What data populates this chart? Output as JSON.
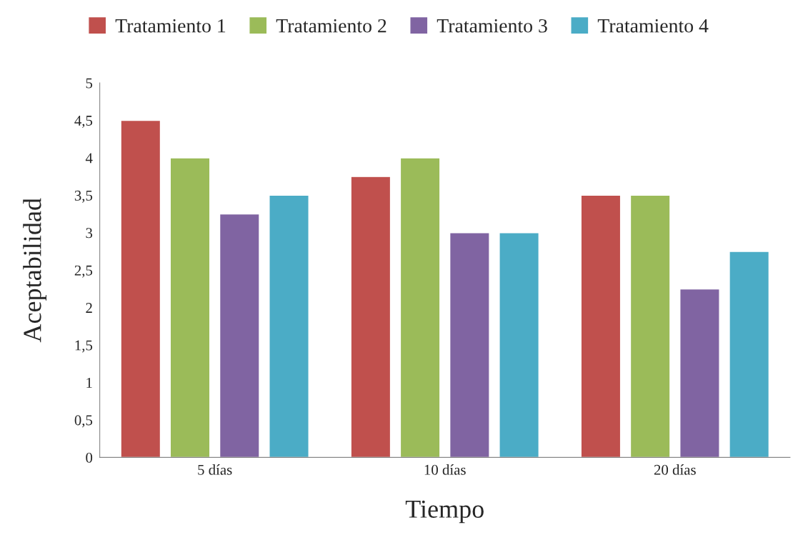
{
  "chart_data": {
    "type": "bar",
    "xlabel": "Tiempo",
    "ylabel": "Aceptabilidad",
    "categories": [
      "5 días",
      "10 días",
      "20 días"
    ],
    "series": [
      {
        "name": "Tratamiento 1",
        "color": "#c0504d",
        "values": [
          4.5,
          3.75,
          3.5
        ]
      },
      {
        "name": "Tratamiento 2",
        "color": "#9bbb59",
        "values": [
          4,
          4,
          3.5
        ]
      },
      {
        "name": "Tratamiento 3",
        "color": "#8064a2",
        "values": [
          3.25,
          3,
          2.25
        ]
      },
      {
        "name": "Tratamiento 4",
        "color": "#4bacc6",
        "values": [
          3.5,
          3,
          2.75
        ]
      }
    ],
    "ylim": [
      0,
      5
    ],
    "yticks": [
      0,
      {
        "value": 0.5,
        "label": "0,5"
      },
      1,
      {
        "value": 1.5,
        "label": "1,5"
      },
      2,
      {
        "value": 2.5,
        "label": "2,5"
      },
      3,
      {
        "value": 3.5,
        "label": "3,5"
      },
      4,
      {
        "value": 4.5,
        "label": "4,5"
      },
      5
    ],
    "grid": false,
    "legend": "top"
  }
}
